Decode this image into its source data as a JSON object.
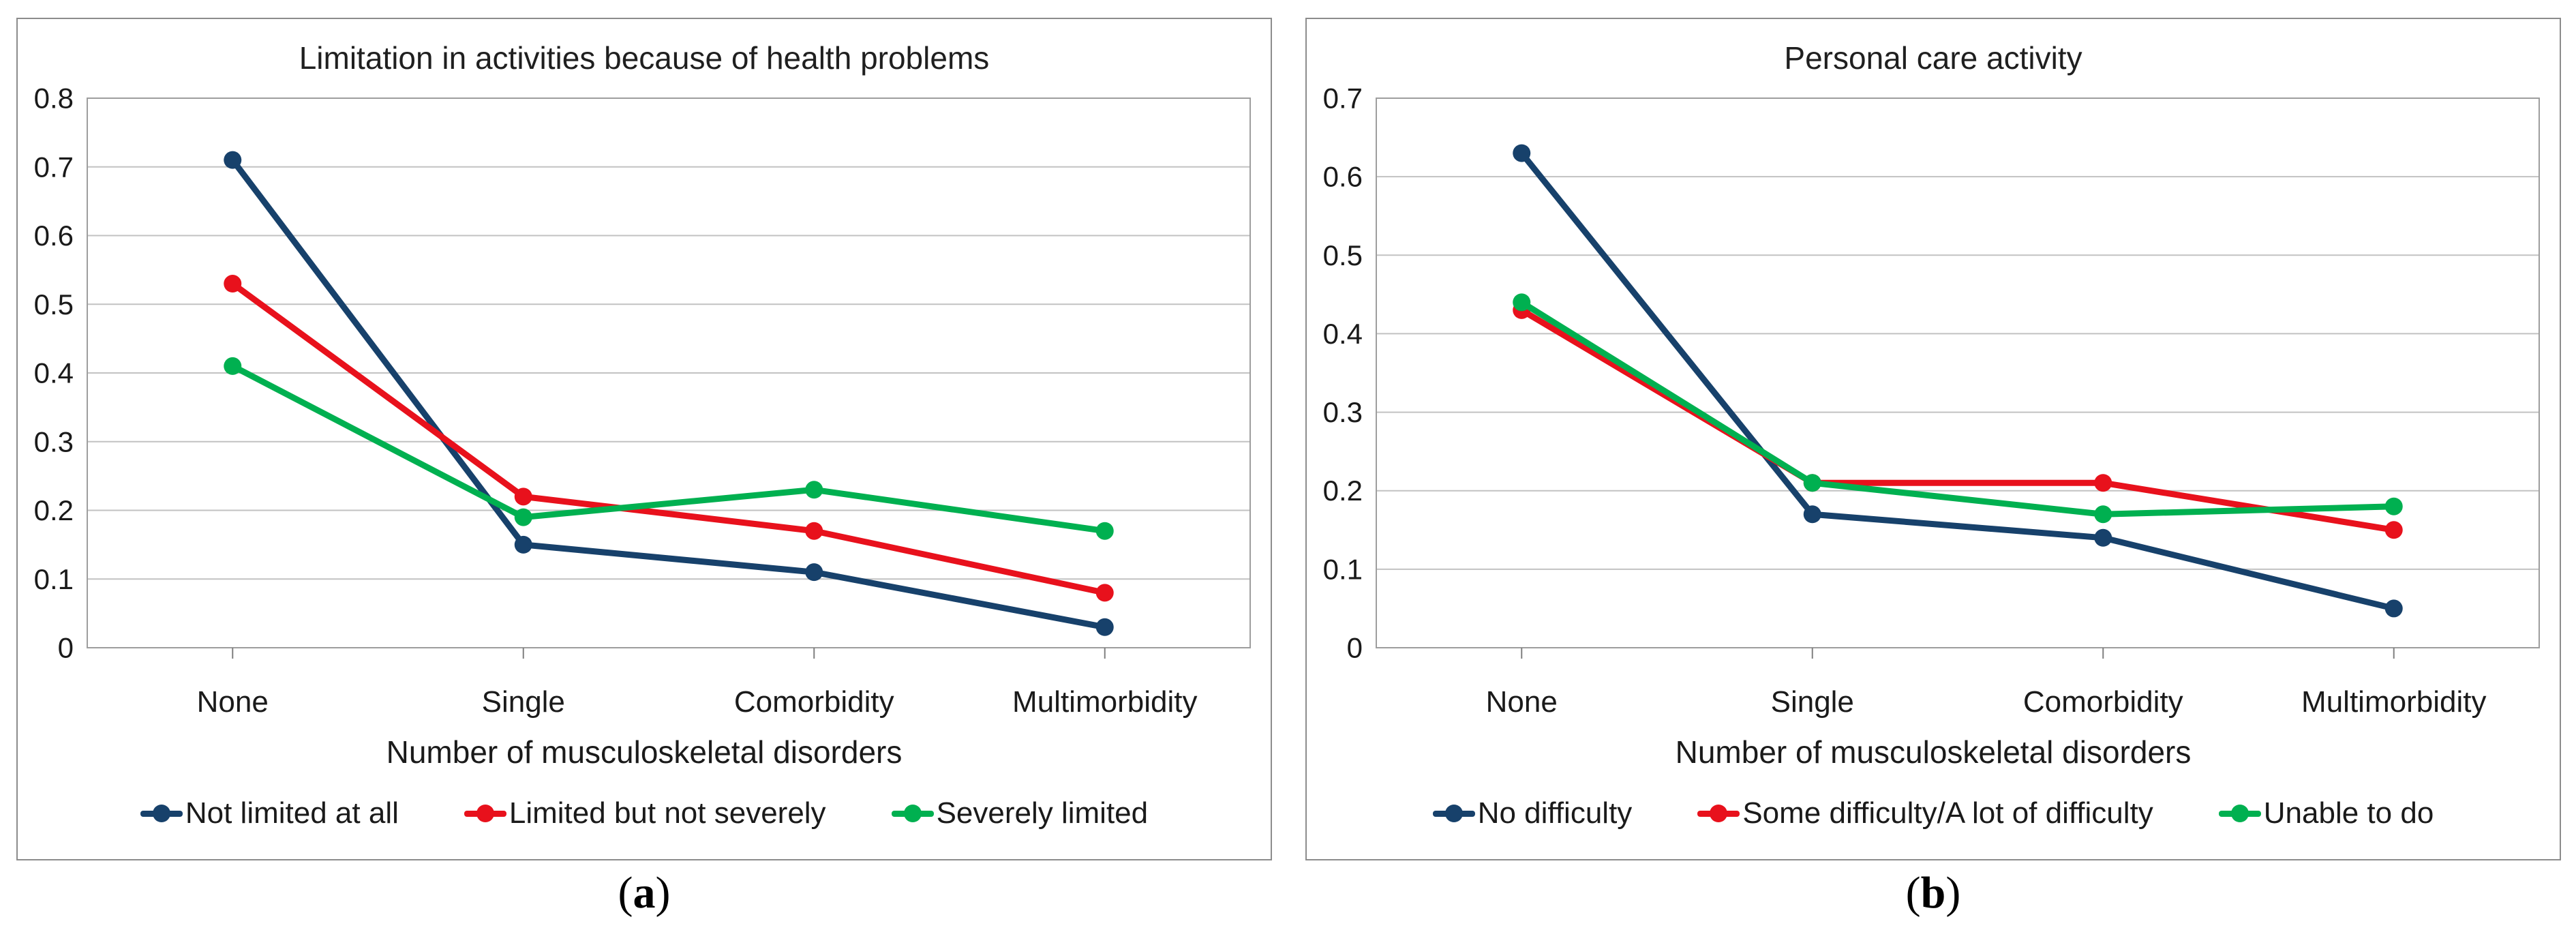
{
  "figure": {
    "captions": [
      {
        "open": "(",
        "letter": "a",
        "close": ")"
      },
      {
        "open": "(",
        "letter": "b",
        "close": ")"
      }
    ]
  },
  "styles": {
    "grid_color": "#c2c2c2",
    "axis_color": "#7f7f7f",
    "border_color": "#9e9e9e",
    "text_color": "#1a1a1a",
    "navy": "#17416b",
    "red": "#e8111c",
    "green": "#00b050"
  },
  "chart_data": [
    {
      "type": "line",
      "title": "Limitation in activities because of health problems",
      "xlabel": "Number of musculoskeletal disorders",
      "ylabel": "",
      "categories": [
        "None",
        "Single",
        "Comorbidity",
        "Multimorbidity"
      ],
      "ylim": [
        0,
        0.8
      ],
      "yticks": [
        "0",
        "0.1",
        "0.2",
        "0.3",
        "0.4",
        "0.5",
        "0.6",
        "0.7",
        "0.8"
      ],
      "grid": "horizontal",
      "legend_position": "bottom",
      "series": [
        {
          "name": "Not limited at all",
          "color": "#17416b",
          "values": [
            0.71,
            0.15,
            0.11,
            0.03
          ]
        },
        {
          "name": "Limited but not severely",
          "color": "#e8111c",
          "values": [
            0.53,
            0.22,
            0.17,
            0.08
          ]
        },
        {
          "name": "Severely limited",
          "color": "#00b050",
          "values": [
            0.41,
            0.19,
            0.23,
            0.17
          ]
        }
      ]
    },
    {
      "type": "line",
      "title": "Personal care activity",
      "xlabel": "Number of musculoskeletal disorders",
      "ylabel": "",
      "categories": [
        "None",
        "Single",
        "Comorbidity",
        "Multimorbidity"
      ],
      "ylim": [
        0,
        0.7
      ],
      "yticks": [
        "0",
        "0.1",
        "0.2",
        "0.3",
        "0.4",
        "0.5",
        "0.6",
        "0.7"
      ],
      "grid": "horizontal",
      "legend_position": "bottom",
      "series": [
        {
          "name": "No difficulty",
          "color": "#17416b",
          "values": [
            0.63,
            0.17,
            0.14,
            0.05
          ]
        },
        {
          "name": "Some difficulty/A lot of difficulty",
          "color": "#e8111c",
          "values": [
            0.43,
            0.21,
            0.21,
            0.15
          ]
        },
        {
          "name": "Unable to do",
          "color": "#00b050",
          "values": [
            0.44,
            0.21,
            0.17,
            0.18
          ]
        }
      ]
    }
  ]
}
